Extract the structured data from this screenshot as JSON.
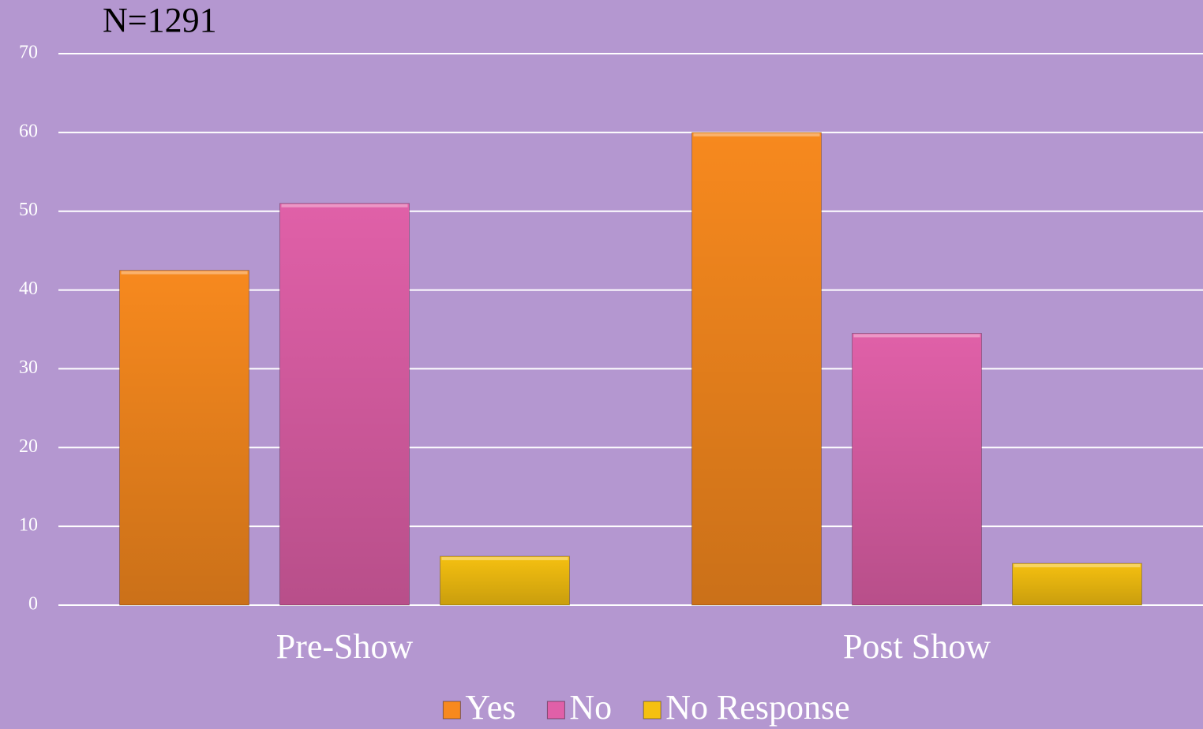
{
  "chart_data": {
    "type": "bar",
    "title": "N=1291",
    "categories": [
      "Pre-Show",
      "Post Show"
    ],
    "series": [
      {
        "name": "Yes",
        "color": "#f7891e",
        "values": [
          42.5,
          60
        ]
      },
      {
        "name": "No",
        "color": "#e060a8",
        "values": [
          51,
          34.5
        ]
      },
      {
        "name": "No Response",
        "color": "#f5c010",
        "values": [
          6.2,
          5.3
        ]
      }
    ],
    "ylim": [
      0,
      70
    ],
    "yticks": [
      0,
      10,
      20,
      30,
      40,
      50,
      60,
      70
    ],
    "grid": true,
    "legend": "bottom"
  }
}
